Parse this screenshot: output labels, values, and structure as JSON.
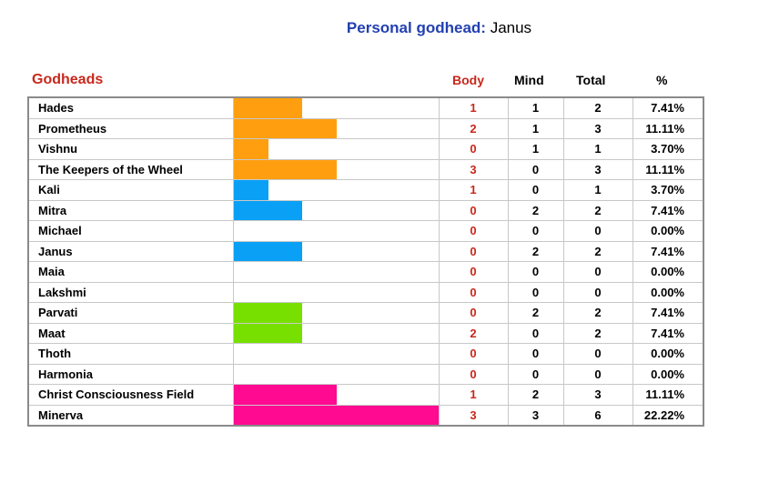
{
  "header": {
    "personal_label": "Personal godhead:",
    "personal_value": "Janus"
  },
  "columns": {
    "godheads": "Godheads",
    "body": "Body",
    "mind": "Mind",
    "total": "Total",
    "percent": "%"
  },
  "colors": {
    "title_label": "#2340b0",
    "red_header": "#c8281c",
    "groups": [
      "#ff9f10",
      "#0aa0f5",
      "#78e000",
      "#ff0a90"
    ]
  },
  "chart_data": {
    "type": "table",
    "bar_scale_max": 6,
    "rows": [
      {
        "name": "Hades",
        "body": "1",
        "mind": "1",
        "total": "2",
        "pct": "7.41%",
        "value": 2,
        "group": 0
      },
      {
        "name": "Prometheus",
        "body": "2",
        "mind": "1",
        "total": "3",
        "pct": "11.11%",
        "value": 3,
        "group": 0
      },
      {
        "name": "Vishnu",
        "body": "0",
        "mind": "1",
        "total": "1",
        "pct": "3.70%",
        "value": 1,
        "group": 0
      },
      {
        "name": "The Keepers of the Wheel",
        "body": "3",
        "mind": "0",
        "total": "3",
        "pct": "11.11%",
        "value": 3,
        "group": 0
      },
      {
        "name": "Kali",
        "body": "1",
        "mind": "0",
        "total": "1",
        "pct": "3.70%",
        "value": 1,
        "group": 1
      },
      {
        "name": "Mitra",
        "body": "0",
        "mind": "2",
        "total": "2",
        "pct": "7.41%",
        "value": 2,
        "group": 1
      },
      {
        "name": "Michael",
        "body": "0",
        "mind": "0",
        "total": "0",
        "pct": "0.00%",
        "value": 0,
        "group": 1
      },
      {
        "name": "Janus",
        "body": "0",
        "mind": "2",
        "total": "2",
        "pct": "7.41%",
        "value": 2,
        "group": 1
      },
      {
        "name": "Maia",
        "body": "0",
        "mind": "0",
        "total": "0",
        "pct": "0.00%",
        "value": 0,
        "group": 2
      },
      {
        "name": "Lakshmi",
        "body": "0",
        "mind": "0",
        "total": "0",
        "pct": "0.00%",
        "value": 0,
        "group": 2
      },
      {
        "name": "Parvati",
        "body": "0",
        "mind": "2",
        "total": "2",
        "pct": "7.41%",
        "value": 2,
        "group": 2
      },
      {
        "name": "Maat",
        "body": "2",
        "mind": "0",
        "total": "2",
        "pct": "7.41%",
        "value": 2,
        "group": 2
      },
      {
        "name": "Thoth",
        "body": "0",
        "mind": "0",
        "total": "0",
        "pct": "0.00%",
        "value": 0,
        "group": 3
      },
      {
        "name": "Harmonia",
        "body": "0",
        "mind": "0",
        "total": "0",
        "pct": "0.00%",
        "value": 0,
        "group": 3
      },
      {
        "name": "Christ Consciousness Field",
        "body": "1",
        "mind": "2",
        "total": "3",
        "pct": "11.11%",
        "value": 3,
        "group": 3
      },
      {
        "name": "Minerva",
        "body": "3",
        "mind": "3",
        "total": "6",
        "pct": "22.22%",
        "value": 6,
        "group": 3
      }
    ]
  }
}
